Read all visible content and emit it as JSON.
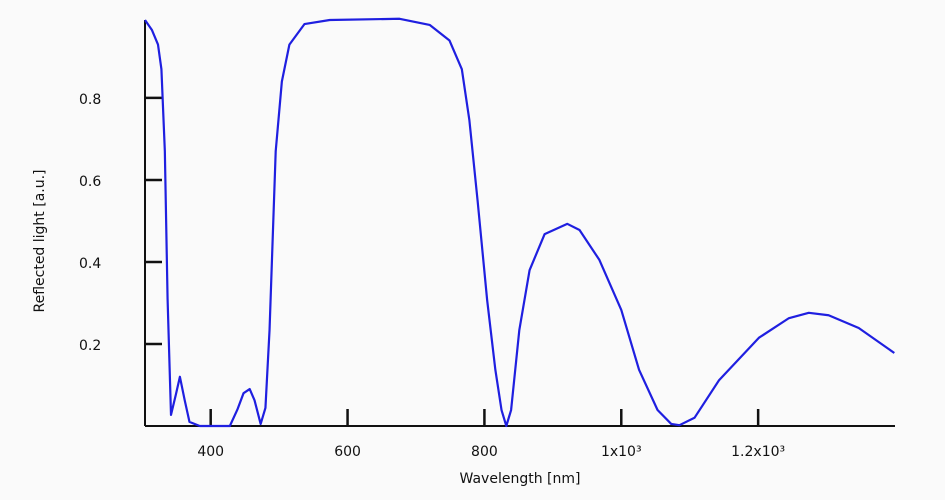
{
  "chart_data": {
    "type": "line",
    "x_label": "Wavelength [nm]",
    "y_label": "Reflected light [a.u.]",
    "x": [
      304,
      314,
      323,
      328,
      333,
      337,
      342,
      349,
      355,
      362,
      369,
      384,
      428,
      439,
      448,
      457,
      464,
      473,
      480,
      486,
      495,
      504,
      515,
      537,
      574,
      676,
      720,
      749,
      767,
      778,
      790,
      804,
      816,
      825,
      832,
      839,
      851,
      866,
      888,
      921,
      939,
      968,
      1000,
      1026,
      1053,
      1073,
      1085,
      1107,
      1143,
      1201,
      1245,
      1274,
      1303,
      1347,
      1399
    ],
    "series": [
      {
        "color": "#1f1fe0",
        "values": [
          0.99,
          0.966,
          0.93,
          0.87,
          0.67,
          0.31,
          0.027,
          0.076,
          0.12,
          0.063,
          0.01,
          0,
          0,
          0.04,
          0.08,
          0.09,
          0.063,
          0.005,
          0.044,
          0.234,
          0.67,
          0.84,
          0.93,
          0.98,
          0.99,
          0.993,
          0.978,
          0.94,
          0.87,
          0.746,
          0.55,
          0.307,
          0.137,
          0.039,
          0,
          0.039,
          0.234,
          0.38,
          0.468,
          0.493,
          0.478,
          0.405,
          0.283,
          0.137,
          0.039,
          0.005,
          0.002,
          0.02,
          0.112,
          0.215,
          0.263,
          0.276,
          0.27,
          0.239,
          0.178
        ]
      }
    ],
    "xlim": [
      304,
      1400
    ],
    "ylim": [
      0,
      0.99
    ],
    "xticks": [
      400,
      600,
      800,
      {
        "value": 1000,
        "label": "1x10³"
      },
      {
        "value": 1200,
        "label": "1.2x10³"
      }
    ],
    "yticks": [
      0.2,
      0.4,
      0.6,
      0.8
    ],
    "grid": false
  }
}
